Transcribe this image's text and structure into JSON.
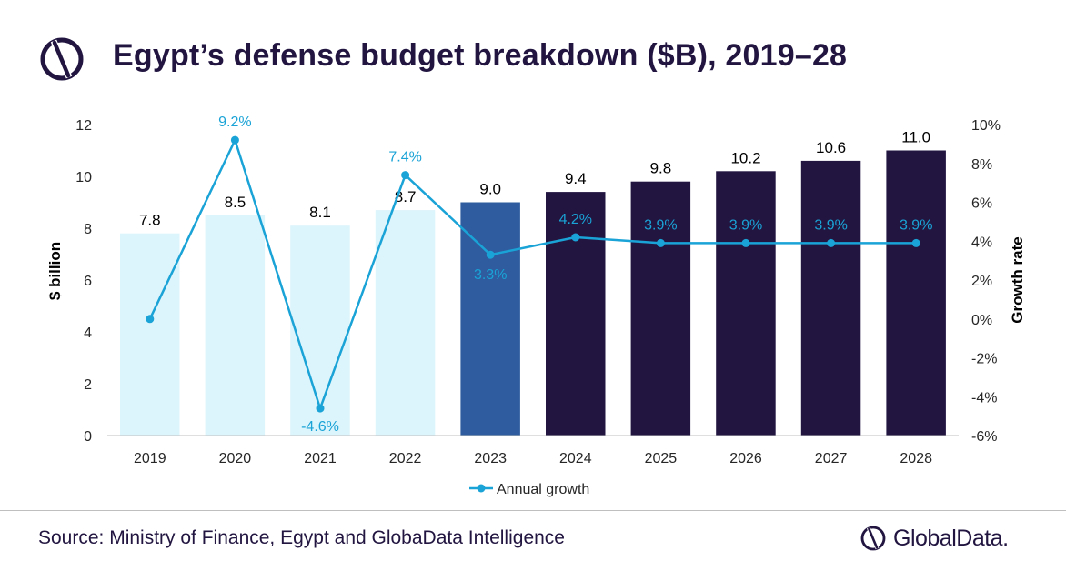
{
  "header": {
    "title": "Egypt’s defense budget breakdown ($B), 2019–28"
  },
  "footer": {
    "source": "Source: Ministry of Finance, Egypt and GlobaData Intelligence",
    "brand": "GlobalData."
  },
  "chart_data": {
    "type": "bar",
    "categories": [
      "2019",
      "2020",
      "2021",
      "2022",
      "2023",
      "2024",
      "2025",
      "2026",
      "2027",
      "2028"
    ],
    "values": [
      7.8,
      8.5,
      8.1,
      8.7,
      9.0,
      9.4,
      9.8,
      10.2,
      10.6,
      11.0
    ],
    "value_labels": [
      "7.8",
      "8.5",
      "8.1",
      "8.7",
      "9.0",
      "9.4",
      "9.8",
      "10.2",
      "10.6",
      "11.0"
    ],
    "bar_colors": [
      "#dcf4fb",
      "#dcf4fb",
      "#dcf4fb",
      "#dcf4fb",
      "#2e5c9e",
      "#221641",
      "#221641",
      "#221641",
      "#221641",
      "#221641"
    ],
    "ylabel": "$ billion",
    "ylim": [
      0,
      12
    ],
    "yticks": [
      "0",
      "2",
      "4",
      "6",
      "8",
      "10",
      "12"
    ],
    "y2label": "Growth rate",
    "y2lim": [
      -6,
      10
    ],
    "y2ticks": [
      "-6%",
      "-4%",
      "-2%",
      "0%",
      "2%",
      "4%",
      "6%",
      "8%",
      "10%"
    ],
    "line_series": {
      "name": "Annual growth",
      "color": "#1aa3d6",
      "values": [
        0,
        9.2,
        -4.6,
        7.4,
        3.3,
        4.2,
        3.9,
        3.9,
        3.9,
        3.9
      ],
      "labels": [
        "",
        "9.2%",
        "-4.6%",
        "7.4%",
        "3.3%",
        "4.2%",
        "3.9%",
        "3.9%",
        "3.9%",
        "3.9%"
      ]
    },
    "legend": "bottom-center",
    "grid": false
  }
}
